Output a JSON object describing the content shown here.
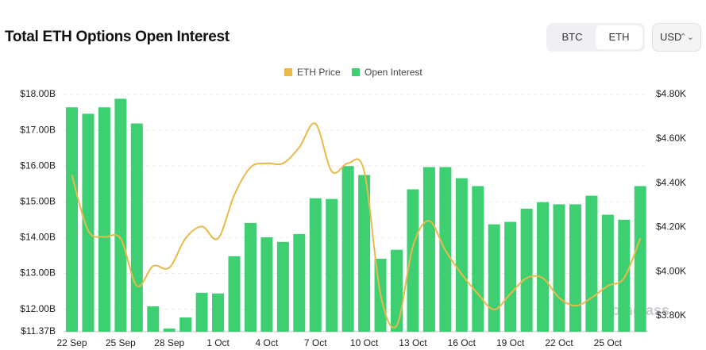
{
  "header": {
    "title": "Total ETH Options Open Interest",
    "toggle": [
      "BTC",
      "ETH"
    ],
    "currency": "USD"
  },
  "chart_data": {
    "type": "bar-line",
    "categories": [
      "22 Sep",
      null,
      null,
      "25 Sep",
      null,
      null,
      "28 Sep",
      null,
      null,
      "1 Oct",
      null,
      null,
      "4 Oct",
      null,
      null,
      "7 Oct",
      null,
      null,
      "10 Oct",
      null,
      null,
      "13 Oct",
      null,
      null,
      "16 Oct",
      null,
      null,
      "19 Oct",
      null,
      null,
      "22 Oct",
      null,
      null,
      "25 Oct",
      null,
      null
    ],
    "series": [
      {
        "name": "ETH Price",
        "color": "#e9b949",
        "axis": "y2",
        "values": [
          4436,
          4186,
          4157,
          4150,
          3936,
          4025,
          4018,
          4150,
          4204,
          4150,
          4346,
          4471,
          4489,
          4489,
          4561,
          4668,
          4453,
          4489,
          4453,
          3900,
          3757,
          4114,
          4229,
          4096,
          3989,
          3900,
          3829,
          3900,
          3971,
          3971,
          3882,
          3846,
          3882,
          3936,
          3971,
          4150
        ]
      },
      {
        "name": "Open Interest",
        "color": "#3ecf73",
        "values": [
          17.64,
          17.46,
          17.64,
          17.88,
          17.19,
          12.08,
          11.46,
          11.77,
          12.46,
          12.44,
          13.48,
          14.41,
          14.01,
          13.88,
          14.1,
          15.1,
          15.08,
          16.0,
          15.75,
          13.41,
          13.66,
          15.35,
          15.97,
          15.97,
          15.66,
          15.44,
          14.37,
          14.44,
          14.81,
          14.99,
          14.93,
          14.93,
          15.17,
          14.64,
          14.5,
          15.44
        ]
      }
    ],
    "ylim": [
      11.37,
      18.0
    ],
    "yticks": [
      {
        "value": 11.37,
        "label": "$11.37B"
      },
      {
        "value": 12,
        "label": "$12.00B"
      },
      {
        "value": 13,
        "label": "$13.00B"
      },
      {
        "value": 14,
        "label": "$14.00B"
      },
      {
        "value": 15,
        "label": "$15.00B"
      },
      {
        "value": 16,
        "label": "$16.00B"
      },
      {
        "value": 17,
        "label": "$17.00B"
      },
      {
        "value": 18,
        "label": "$18.00B"
      }
    ],
    "y2lim": [
      3728.6,
      4800
    ],
    "y2ticks": [
      {
        "value": 3800,
        "label": "$3.80K"
      },
      {
        "value": 4000,
        "label": "$4.00K"
      },
      {
        "value": 4200,
        "label": "$4.20K"
      },
      {
        "value": 4400,
        "label": "$4.40K"
      },
      {
        "value": 4600,
        "label": "$4.60K"
      },
      {
        "value": 4800,
        "label": "$4.80K"
      }
    ],
    "grid": true,
    "watermark": "coinglass"
  }
}
